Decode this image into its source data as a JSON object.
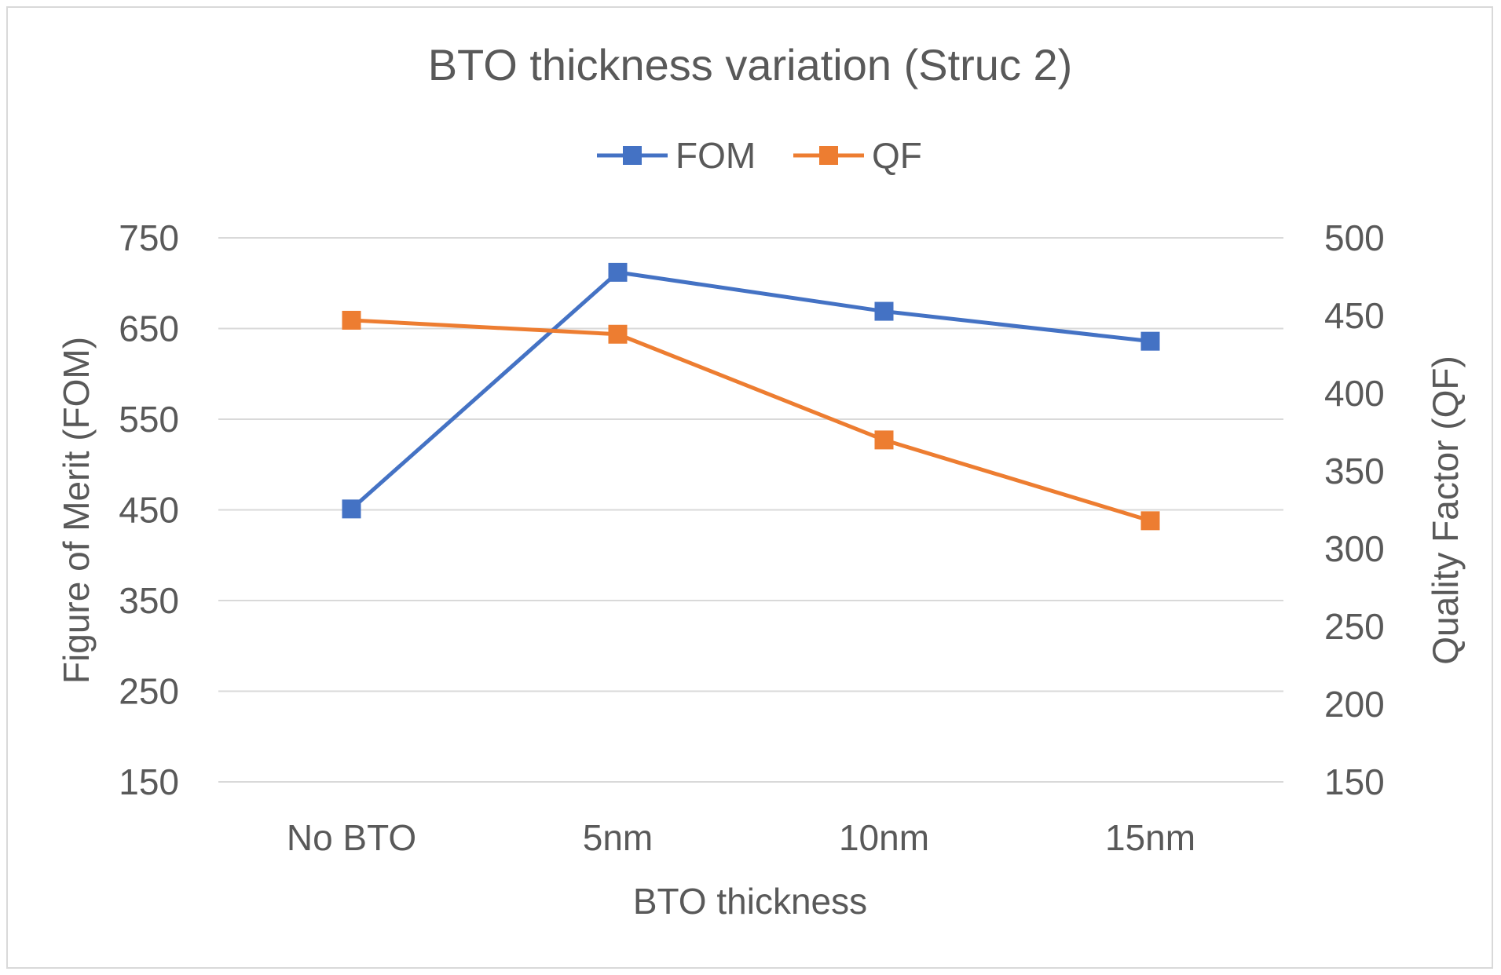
{
  "chart_data": {
    "type": "line",
    "title": "BTO thickness variation (Struc 2)",
    "xlabel": "BTO thickness",
    "ylabel": "Figure of Merit (FOM)",
    "y2label": "Quality Factor (QF)",
    "categories": [
      "No BTO",
      "5nm",
      "10nm",
      "15nm"
    ],
    "ylim": [
      150,
      750
    ],
    "yticks": [
      150,
      250,
      350,
      450,
      550,
      650,
      750
    ],
    "y2lim": [
      150,
      500
    ],
    "y2ticks": [
      150,
      200,
      250,
      300,
      350,
      400,
      450,
      500
    ],
    "grid": true,
    "legend": "top",
    "series": [
      {
        "name": "FOM",
        "axis": "left",
        "color": "#4472C4",
        "marker": "square",
        "values": [
          451,
          712,
          669,
          636
        ]
      },
      {
        "name": "QF",
        "axis": "right",
        "color": "#ED7D31",
        "marker": "square",
        "values": [
          447,
          438,
          370,
          318
        ]
      }
    ]
  }
}
